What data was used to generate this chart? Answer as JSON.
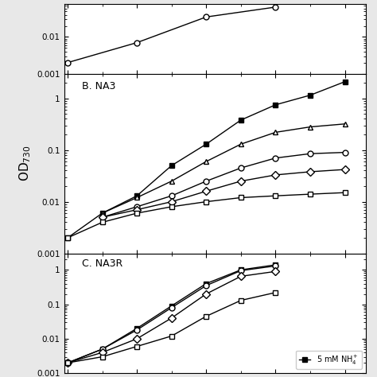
{
  "panels": [
    {
      "label": "",
      "ylim": [
        0.001,
        0.08
      ],
      "xlim": [
        0,
        4
      ],
      "series": [
        {
          "marker": "o",
          "fillstyle": "none",
          "color": "black",
          "x": [
            0,
            1,
            2,
            3
          ],
          "y": [
            0.002,
            0.007,
            0.035,
            0.065
          ]
        }
      ]
    },
    {
      "label": "B. NA3",
      "ylim": [
        0.001,
        3.0
      ],
      "xlim": [
        0,
        4
      ],
      "series": [
        {
          "marker": "s",
          "fillstyle": "full",
          "color": "black",
          "x": [
            0,
            0.5,
            1,
            1.5,
            2,
            2.5,
            3,
            3.5,
            4
          ],
          "y": [
            0.002,
            0.006,
            0.013,
            0.05,
            0.13,
            0.38,
            0.75,
            1.15,
            2.1
          ]
        },
        {
          "marker": "^",
          "fillstyle": "none",
          "color": "black",
          "x": [
            0.5,
            1,
            1.5,
            2,
            2.5,
            3,
            3.5,
            4
          ],
          "y": [
            0.006,
            0.012,
            0.025,
            0.06,
            0.13,
            0.22,
            0.28,
            0.32
          ]
        },
        {
          "marker": "o",
          "fillstyle": "none",
          "color": "black",
          "x": [
            0.5,
            1,
            1.5,
            2,
            2.5,
            3,
            3.5,
            4
          ],
          "y": [
            0.005,
            0.008,
            0.013,
            0.025,
            0.045,
            0.07,
            0.085,
            0.09
          ]
        },
        {
          "marker": "D",
          "fillstyle": "none",
          "color": "black",
          "x": [
            0.5,
            1,
            1.5,
            2,
            2.5,
            3,
            3.5,
            4
          ],
          "y": [
            0.005,
            0.007,
            0.01,
            0.016,
            0.025,
            0.033,
            0.038,
            0.042
          ]
        },
        {
          "marker": "s",
          "fillstyle": "none",
          "color": "black",
          "x": [
            0,
            0.5,
            1,
            1.5,
            2,
            2.5,
            3,
            3.5,
            4
          ],
          "y": [
            0.002,
            0.004,
            0.006,
            0.008,
            0.01,
            0.012,
            0.013,
            0.014,
            0.015
          ]
        }
      ]
    },
    {
      "label": "C. NA3R",
      "ylim": [
        0.001,
        3.0
      ],
      "xlim": [
        0,
        4
      ],
      "series": [
        {
          "marker": "s",
          "fillstyle": "full",
          "color": "black",
          "x": [
            0,
            0.5,
            1,
            1.5,
            2,
            2.5,
            3
          ],
          "y": [
            0.002,
            0.005,
            0.02,
            0.09,
            0.4,
            1.0,
            1.4
          ]
        },
        {
          "marker": "o",
          "fillstyle": "none",
          "color": "black",
          "x": [
            0,
            0.5,
            1,
            1.5,
            2,
            2.5,
            3
          ],
          "y": [
            0.002,
            0.005,
            0.018,
            0.08,
            0.35,
            0.95,
            1.3
          ]
        },
        {
          "marker": "D",
          "fillstyle": "none",
          "color": "black",
          "x": [
            0,
            0.5,
            1,
            1.5,
            2,
            2.5,
            3
          ],
          "y": [
            0.002,
            0.004,
            0.01,
            0.04,
            0.2,
            0.65,
            0.9
          ]
        },
        {
          "marker": "s",
          "fillstyle": "none",
          "color": "black",
          "x": [
            0,
            0.5,
            1,
            1.5,
            2,
            2.5,
            3
          ],
          "y": [
            0.002,
            0.003,
            0.006,
            0.012,
            0.045,
            0.13,
            0.22
          ]
        }
      ]
    }
  ],
  "ylabel": "OD$_{730}$",
  "legend_entry": "5 mM NH$_4^+$",
  "background_color": "#e8e8e8",
  "panel_bg": "#ffffff",
  "ytick_labels_A": [
    "0.001",
    "0.01"
  ],
  "ytick_labels_B": [
    "0.001",
    "0.01",
    "0.1",
    "1"
  ],
  "ytick_labels_C": [
    "0.1",
    "1"
  ]
}
